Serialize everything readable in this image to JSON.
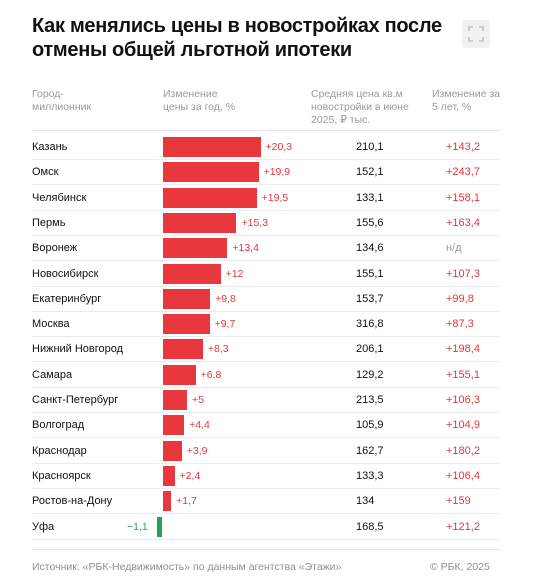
{
  "title": "Как менялись цены в новостройках после отмены общей льготной ипотеки",
  "headers": {
    "city": "Город-миллионник",
    "change_year": "Изменение цены за год, %",
    "avg_price": "Средняя цена кв.м новостройки в июне 2025, ₽ тыс.",
    "change_5y": "Изменение за 5 лет, %"
  },
  "colors": {
    "positive": "#e8383d",
    "negative": "#22a35a",
    "text_pos": "#e0383c"
  },
  "chart_data": {
    "type": "bar",
    "orientation": "horizontal",
    "categories": [
      "Казань",
      "Омск",
      "Челябинск",
      "Пермь",
      "Воронеж",
      "Новосибирск",
      "Екатеринбург",
      "Москва",
      "Нижний Новгород",
      "Самара",
      "Санкт-Петербург",
      "Волгоград",
      "Краснодар",
      "Красноярск",
      "Ростов-на-Дону",
      "Уфа"
    ],
    "values": [
      20.3,
      19.9,
      19.5,
      15.3,
      13.4,
      12,
      9.8,
      9.7,
      8.3,
      6.8,
      5,
      4.4,
      3.9,
      2.4,
      1.7,
      -1.1
    ],
    "value_labels": [
      "+20,3",
      "+19,9",
      "+19,5",
      "+15,3",
      "+13,4",
      "+12",
      "+9,8",
      "+9,7",
      "+8,3",
      "+6,8",
      "+5",
      "+4,4",
      "+3,9",
      "+2,4",
      "+1,7",
      "−1,1"
    ],
    "avg_price": [
      "210,1",
      "152,1",
      "133,1",
      "155,6",
      "134,6",
      "155,1",
      "153,7",
      "316,8",
      "206,1",
      "129,2",
      "213,5",
      "105,9",
      "162,7",
      "133,3",
      "134",
      "168,5"
    ],
    "change_5y": [
      "+143,2",
      "+243,7",
      "+158,1",
      "+163,4",
      "н/д",
      "+107,3",
      "+99,8",
      "+87,3",
      "+198,4",
      "+155,1",
      "+106,3",
      "+104,9",
      "+180,2",
      "+106,4",
      "+159",
      "+121,2"
    ]
  },
  "footer": {
    "source": "Источник: «РБК-Недвижимость» по данным агентства «Этажи»",
    "copyright": "© РБК, 2025"
  }
}
